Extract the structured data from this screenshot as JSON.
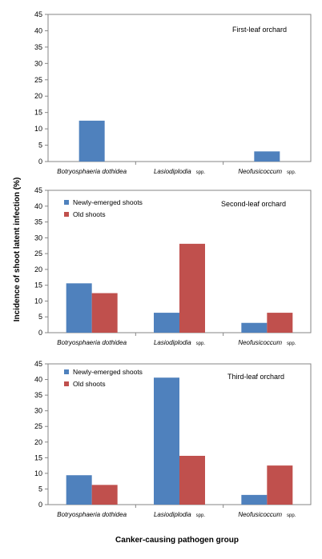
{
  "ylabel": "Incidence of shoot latent infection (%)",
  "xlabel": "Canker-causing pathogen group",
  "colors": {
    "newly": "#4f81bd",
    "old": "#c0504d"
  },
  "chart_data": [
    {
      "type": "bar",
      "title": "First-leaf orchard",
      "categories": [
        {
          "name": "Botryosphaeria dothidea",
          "suffix": ""
        },
        {
          "name": "Lasiodiplodia",
          "suffix": "spp."
        },
        {
          "name": "Neofusicoccum",
          "suffix": "spp."
        }
      ],
      "series": [
        {
          "name": "",
          "color": "#4f81bd",
          "values": [
            12.5,
            0,
            3.1
          ]
        }
      ],
      "ylim": [
        0,
        45
      ],
      "yticks": [
        0,
        5,
        10,
        15,
        20,
        25,
        30,
        35,
        40,
        45
      ],
      "legend": []
    },
    {
      "type": "bar",
      "title": "Second-leaf orchard",
      "categories": [
        {
          "name": "Botryosphaeria dothidea",
          "suffix": ""
        },
        {
          "name": "Lasiodiplodia",
          "suffix": "spp."
        },
        {
          "name": "Neofusicoccum",
          "suffix": "spp."
        }
      ],
      "series": [
        {
          "name": "Newly-emerged shoots",
          "color": "#4f81bd",
          "values": [
            15.6,
            6.3,
            3.1
          ]
        },
        {
          "name": "Old shoots",
          "color": "#c0504d",
          "values": [
            12.5,
            28.1,
            6.3
          ]
        }
      ],
      "ylim": [
        0,
        45
      ],
      "yticks": [
        0,
        5,
        10,
        15,
        20,
        25,
        30,
        35,
        40,
        45
      ],
      "legend": [
        "Newly-emerged shoots",
        "Old shoots"
      ]
    },
    {
      "type": "bar",
      "title": "Third-leaf orchard",
      "categories": [
        {
          "name": "Botryosphaeria dothidea",
          "suffix": ""
        },
        {
          "name": "Lasiodiplodia",
          "suffix": "spp."
        },
        {
          "name": "Neofusicoccum",
          "suffix": "spp."
        }
      ],
      "series": [
        {
          "name": "Newly-emerged shoots",
          "color": "#4f81bd",
          "values": [
            9.4,
            40.6,
            3.1
          ]
        },
        {
          "name": "Old shoots",
          "color": "#c0504d",
          "values": [
            6.3,
            15.6,
            12.5
          ]
        }
      ],
      "ylim": [
        0,
        45
      ],
      "yticks": [
        0,
        5,
        10,
        15,
        20,
        25,
        30,
        35,
        40,
        45
      ],
      "legend": [
        "Newly-emerged shoots",
        "Old shoots"
      ]
    }
  ]
}
